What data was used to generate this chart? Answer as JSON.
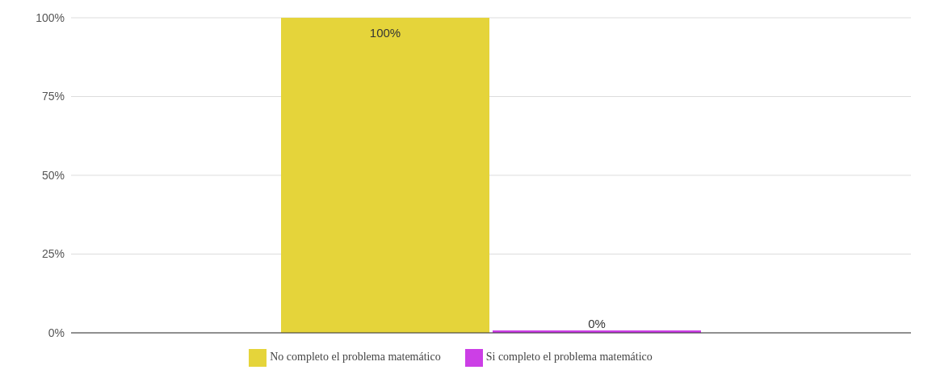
{
  "chart_data": {
    "type": "bar",
    "categories": [
      null
    ],
    "series": [
      {
        "name": "No completo el problema matemático",
        "color": "#e5d43a",
        "values": [
          100
        ],
        "value_labels": [
          "100%"
        ]
      },
      {
        "name": "Si completo el problema matemático",
        "color": "#cc3fe6",
        "values": [
          0
        ],
        "value_labels": [
          "0%"
        ]
      }
    ],
    "ylim": [
      0,
      100
    ],
    "yticks": [
      {
        "value": 0,
        "label": "0%"
      },
      {
        "value": 25,
        "label": "25%"
      },
      {
        "value": 50,
        "label": "50%"
      },
      {
        "value": 75,
        "label": "75%"
      },
      {
        "value": 100,
        "label": "100%"
      }
    ],
    "grid": "y",
    "legend": "bottom"
  }
}
